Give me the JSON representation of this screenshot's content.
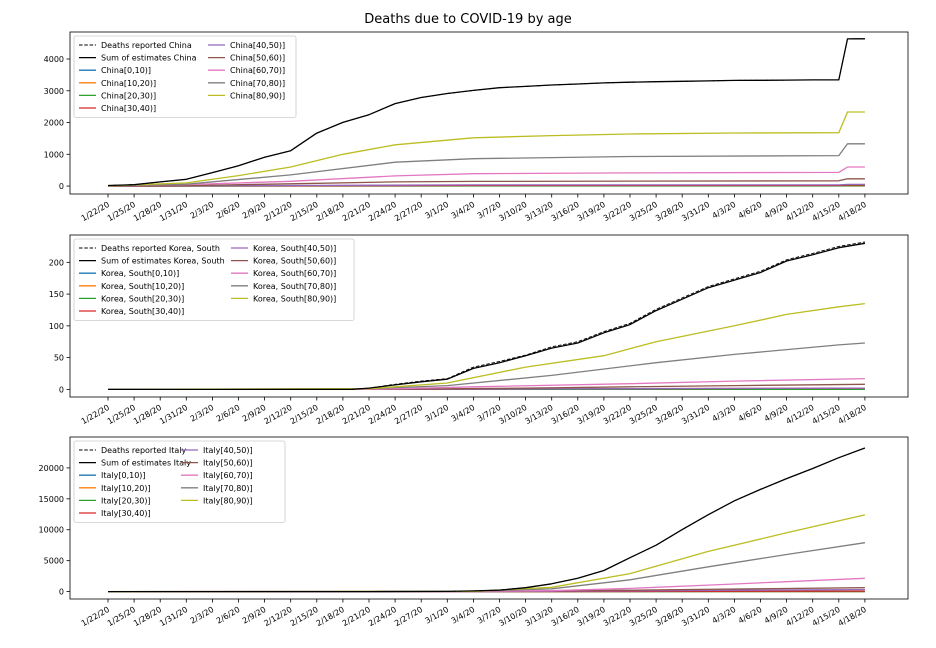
{
  "figure": {
    "title": "Deaths due to COVID-19 by age"
  },
  "x_tick_labels": [
    "1/22/20",
    "1/25/20",
    "1/28/20",
    "1/31/20",
    "2/3/20",
    "2/6/20",
    "2/9/20",
    "2/12/20",
    "2/15/20",
    "2/18/20",
    "2/21/20",
    "2/24/20",
    "2/27/20",
    "3/1/20",
    "3/4/20",
    "3/7/20",
    "3/10/20",
    "3/13/20",
    "3/16/20",
    "3/19/20",
    "3/22/20",
    "3/25/20",
    "3/28/20",
    "3/31/20",
    "4/3/20",
    "4/6/20",
    "4/9/20",
    "4/12/20",
    "4/15/20",
    "4/18/20"
  ],
  "chart_data": [
    {
      "type": "line",
      "country": "China",
      "xlabel": "",
      "ylabel": "",
      "x_range": [
        "1/22/20",
        "4/18/20"
      ],
      "ylim": [
        -250,
        4850
      ],
      "y_ticks": [
        0,
        1000,
        2000,
        3000,
        4000
      ],
      "grid": false,
      "legend_position": "top-left",
      "legend_columns": 2,
      "series": [
        {
          "name": "Deaths reported China",
          "color": "#000000",
          "dash": "dashed",
          "x": [
            "1/22/20",
            "1/25/20",
            "1/28/20",
            "1/31/20",
            "2/3/20",
            "2/6/20",
            "2/9/20",
            "2/12/20",
            "2/15/20",
            "2/18/20",
            "2/21/20",
            "2/24/20",
            "2/27/20",
            "3/1/20",
            "3/4/20",
            "3/7/20",
            "3/10/20",
            "3/13/20",
            "3/16/20",
            "3/19/20",
            "3/22/20",
            "3/25/20",
            "3/28/20",
            "3/31/20",
            "4/3/20",
            "4/6/20",
            "4/9/20",
            "4/12/20",
            "4/15/20",
            "4/16/20",
            "4/17/20",
            "4/18/20"
          ],
          "y": [
            17,
            42,
            132,
            213,
            425,
            637,
            908,
            1113,
            1666,
            2004,
            2247,
            2595,
            2788,
            2914,
            3012,
            3097,
            3136,
            3180,
            3213,
            3248,
            3270,
            3285,
            3299,
            3309,
            3326,
            3331,
            3336,
            3341,
            3342,
            4632,
            4636,
            4636
          ]
        },
        {
          "name": "Sum of estimates China",
          "color": "#000000",
          "dash": "solid",
          "x": [
            "1/22/20",
            "1/25/20",
            "1/28/20",
            "1/31/20",
            "2/3/20",
            "2/6/20",
            "2/9/20",
            "2/12/20",
            "2/15/20",
            "2/18/20",
            "2/21/20",
            "2/24/20",
            "2/27/20",
            "3/1/20",
            "3/4/20",
            "3/7/20",
            "3/10/20",
            "3/13/20",
            "3/16/20",
            "3/19/20",
            "3/22/20",
            "3/25/20",
            "3/28/20",
            "3/31/20",
            "4/3/20",
            "4/6/20",
            "4/9/20",
            "4/12/20",
            "4/15/20",
            "4/16/20",
            "4/17/20",
            "4/18/20"
          ],
          "y": [
            17,
            42,
            132,
            213,
            425,
            637,
            908,
            1113,
            1666,
            2004,
            2247,
            2595,
            2788,
            2914,
            3012,
            3097,
            3136,
            3180,
            3213,
            3248,
            3270,
            3285,
            3299,
            3309,
            3326,
            3331,
            3336,
            3341,
            3342,
            4632,
            4636,
            4636
          ]
        },
        {
          "name": "China[0,10)]",
          "color": "#1f77b4",
          "dash": "solid",
          "x": [
            "1/22/20",
            "2/12/20",
            "3/4/20",
            "4/15/20",
            "4/16/20",
            "4/18/20"
          ],
          "y": [
            0,
            1,
            2,
            2,
            3,
            3
          ]
        },
        {
          "name": "China[10,20)]",
          "color": "#ff7f0e",
          "dash": "solid",
          "x": [
            "1/22/20",
            "2/12/20",
            "3/4/20",
            "4/15/20",
            "4/16/20",
            "4/18/20"
          ],
          "y": [
            0,
            2,
            4,
            4,
            6,
            6
          ]
        },
        {
          "name": "China[20,30)]",
          "color": "#2ca02c",
          "dash": "solid",
          "x": [
            "1/22/20",
            "2/12/20",
            "3/4/20",
            "4/15/20",
            "4/16/20",
            "4/18/20"
          ],
          "y": [
            0,
            5,
            10,
            11,
            15,
            15
          ]
        },
        {
          "name": "China[30,40)]",
          "color": "#d62728",
          "dash": "solid",
          "x": [
            "1/22/20",
            "2/12/20",
            "3/4/20",
            "4/15/20",
            "4/16/20",
            "4/18/20"
          ],
          "y": [
            0,
            11,
            22,
            23,
            32,
            32
          ]
        },
        {
          "name": "China[40,50)]",
          "color": "#9467bd",
          "dash": "solid",
          "x": [
            "1/22/20",
            "2/12/20",
            "3/4/20",
            "4/15/20",
            "4/16/20",
            "4/18/20"
          ],
          "y": [
            0,
            18,
            36,
            38,
            53,
            53
          ]
        },
        {
          "name": "China[50,60)]",
          "color": "#8c564b",
          "dash": "solid",
          "x": [
            "1/22/20",
            "1/31/20",
            "2/12/20",
            "2/24/20",
            "3/4/20",
            "4/15/20",
            "4/16/20",
            "4/18/20"
          ],
          "y": [
            1,
            14,
            72,
            130,
            147,
            165,
            228,
            228
          ]
        },
        {
          "name": "China[60,70)]",
          "color": "#e377c2",
          "dash": "solid",
          "x": [
            "1/22/20",
            "1/31/20",
            "2/12/20",
            "2/24/20",
            "3/4/20",
            "3/22/20",
            "4/15/20",
            "4/16/20",
            "4/18/20"
          ],
          "y": [
            2,
            45,
            150,
            320,
            390,
            415,
            430,
            600,
            600
          ]
        },
        {
          "name": "China[70,80)]",
          "color": "#7f7f7f",
          "dash": "solid",
          "x": [
            "1/22/20",
            "1/31/20",
            "2/12/20",
            "2/24/20",
            "3/4/20",
            "3/22/20",
            "4/15/20",
            "4/16/20",
            "4/18/20"
          ],
          "y": [
            3,
            60,
            350,
            750,
            860,
            930,
            960,
            1330,
            1330
          ]
        },
        {
          "name": "China[80,90)]",
          "color": "#bcbd22",
          "dash": "solid",
          "x": [
            "1/22/20",
            "1/31/20",
            "2/6/20",
            "2/12/20",
            "2/18/20",
            "2/24/20",
            "3/4/20",
            "3/13/20",
            "3/22/20",
            "4/3/20",
            "4/15/20",
            "4/16/20",
            "4/18/20"
          ],
          "y": [
            5,
            100,
            330,
            600,
            1000,
            1300,
            1520,
            1590,
            1640,
            1670,
            1680,
            2330,
            2330
          ]
        }
      ]
    },
    {
      "type": "line",
      "country": "Korea, South",
      "xlabel": "",
      "ylabel": "",
      "x_range": [
        "1/22/20",
        "4/18/20"
      ],
      "ylim": [
        -12,
        243
      ],
      "y_ticks": [
        0,
        50,
        100,
        150,
        200
      ],
      "grid": false,
      "legend_position": "top-left",
      "legend_columns": 2,
      "series": [
        {
          "name": "Deaths reported Korea, South",
          "color": "#000000",
          "dash": "dashed",
          "x": [
            "1/22/20",
            "2/19/20",
            "2/21/20",
            "2/24/20",
            "2/27/20",
            "3/1/20",
            "3/4/20",
            "3/7/20",
            "3/10/20",
            "3/13/20",
            "3/16/20",
            "3/19/20",
            "3/22/20",
            "3/25/20",
            "3/28/20",
            "3/31/20",
            "4/3/20",
            "4/6/20",
            "4/9/20",
            "4/12/20",
            "4/15/20",
            "4/18/20"
          ],
          "y": [
            0,
            0,
            2,
            8,
            13,
            17,
            35,
            44,
            54,
            67,
            75,
            91,
            104,
            126,
            144,
            162,
            174,
            186,
            204,
            214,
            225,
            232
          ]
        },
        {
          "name": "Sum of estimates Korea, South",
          "color": "#000000",
          "dash": "solid",
          "x": [
            "1/22/20",
            "2/19/20",
            "2/21/20",
            "2/24/20",
            "2/27/20",
            "3/1/20",
            "3/4/20",
            "3/7/20",
            "3/10/20",
            "3/13/20",
            "3/16/20",
            "3/19/20",
            "3/22/20",
            "3/25/20",
            "3/28/20",
            "3/31/20",
            "4/3/20",
            "4/6/20",
            "4/9/20",
            "4/12/20",
            "4/15/20",
            "4/18/20"
          ],
          "y": [
            0,
            0,
            2,
            7,
            12,
            16,
            33,
            42,
            53,
            65,
            73,
            89,
            102,
            124,
            142,
            160,
            172,
            184,
            202,
            212,
            223,
            230
          ]
        },
        {
          "name": "Korea, South[0,10)]",
          "color": "#1f77b4",
          "dash": "solid",
          "x": [
            "1/22/20",
            "4/18/20"
          ],
          "y": [
            0,
            0
          ]
        },
        {
          "name": "Korea, South[10,20)]",
          "color": "#ff7f0e",
          "dash": "solid",
          "x": [
            "1/22/20",
            "4/18/20"
          ],
          "y": [
            0,
            0
          ]
        },
        {
          "name": "Korea, South[20,30)]",
          "color": "#2ca02c",
          "dash": "solid",
          "x": [
            "1/22/20",
            "4/18/20"
          ],
          "y": [
            0,
            0
          ]
        },
        {
          "name": "Korea, South[30,40)]",
          "color": "#d62728",
          "dash": "solid",
          "x": [
            "1/22/20",
            "2/21/20",
            "3/22/20",
            "4/18/20"
          ],
          "y": [
            0,
            0,
            1,
            2
          ]
        },
        {
          "name": "Korea, South[40,50)]",
          "color": "#9467bd",
          "dash": "solid",
          "x": [
            "1/22/20",
            "2/21/20",
            "3/22/20",
            "4/18/20"
          ],
          "y": [
            0,
            0,
            1,
            2
          ]
        },
        {
          "name": "Korea, South[50,60)]",
          "color": "#8c564b",
          "dash": "solid",
          "x": [
            "1/22/20",
            "2/21/20",
            "3/10/20",
            "3/22/20",
            "4/3/20",
            "4/18/20"
          ],
          "y": [
            0,
            0,
            2,
            4,
            6,
            8
          ]
        },
        {
          "name": "Korea, South[60,70)]",
          "color": "#e377c2",
          "dash": "solid",
          "x": [
            "1/22/20",
            "2/21/20",
            "3/4/20",
            "3/22/20",
            "4/3/20",
            "4/18/20"
          ],
          "y": [
            0,
            0,
            4,
            9,
            13,
            17
          ]
        },
        {
          "name": "Korea, South[70,80)]",
          "color": "#7f7f7f",
          "dash": "solid",
          "x": [
            "1/22/20",
            "2/21/20",
            "3/1/20",
            "3/13/20",
            "3/25/20",
            "4/3/20",
            "4/15/20",
            "4/18/20"
          ],
          "y": [
            0,
            1,
            6,
            22,
            42,
            55,
            70,
            73
          ]
        },
        {
          "name": "Korea, South[80,90)]",
          "color": "#bcbd22",
          "dash": "solid",
          "x": [
            "1/22/20",
            "2/21/20",
            "3/1/20",
            "3/10/20",
            "3/19/20",
            "3/25/20",
            "4/3/20",
            "4/9/20",
            "4/15/20",
            "4/18/20"
          ],
          "y": [
            0,
            1,
            10,
            35,
            53,
            75,
            100,
            118,
            130,
            135
          ]
        }
      ]
    },
    {
      "type": "line",
      "country": "Italy",
      "xlabel": "",
      "ylabel": "",
      "x_range": [
        "1/22/20",
        "4/18/20"
      ],
      "ylim": [
        -1200,
        25000
      ],
      "y_ticks": [
        0,
        5000,
        10000,
        15000,
        20000
      ],
      "grid": false,
      "legend_position": "top-left",
      "legend_columns": 2,
      "series": [
        {
          "name": "Deaths reported Italy",
          "color": "#000000",
          "dash": "dashed",
          "x": [
            "1/22/20",
            "2/21/20",
            "3/1/20",
            "3/4/20",
            "3/7/20",
            "3/10/20",
            "3/13/20",
            "3/16/20",
            "3/19/20",
            "3/22/20",
            "3/25/20",
            "3/28/20",
            "3/31/20",
            "4/3/20",
            "4/6/20",
            "4/9/20",
            "4/12/20",
            "4/15/20",
            "4/18/20"
          ],
          "y": [
            0,
            1,
            34,
            107,
            233,
            631,
            1266,
            2158,
            3405,
            5476,
            7503,
            10023,
            12428,
            14681,
            16523,
            18279,
            19899,
            21645,
            23227
          ]
        },
        {
          "name": "Sum of estimates Italy",
          "color": "#000000",
          "dash": "solid",
          "x": [
            "1/22/20",
            "2/21/20",
            "3/1/20",
            "3/4/20",
            "3/7/20",
            "3/10/20",
            "3/13/20",
            "3/16/20",
            "3/19/20",
            "3/22/20",
            "3/25/20",
            "3/28/20",
            "3/31/20",
            "4/3/20",
            "4/6/20",
            "4/9/20",
            "4/12/20",
            "4/15/20",
            "4/18/20"
          ],
          "y": [
            0,
            1,
            34,
            107,
            233,
            631,
            1266,
            2158,
            3405,
            5476,
            7503,
            10023,
            12428,
            14681,
            16523,
            18279,
            19899,
            21645,
            23227
          ]
        },
        {
          "name": "Italy[0,10)]",
          "color": "#1f77b4",
          "dash": "solid",
          "x": [
            "1/22/20",
            "4/18/20"
          ],
          "y": [
            0,
            0
          ]
        },
        {
          "name": "Italy[10,20)]",
          "color": "#ff7f0e",
          "dash": "solid",
          "x": [
            "1/22/20",
            "4/18/20"
          ],
          "y": [
            0,
            0
          ]
        },
        {
          "name": "Italy[20,30)]",
          "color": "#2ca02c",
          "dash": "solid",
          "x": [
            "1/22/20",
            "3/10/20",
            "4/18/20"
          ],
          "y": [
            0,
            0,
            20
          ]
        },
        {
          "name": "Italy[30,40)]",
          "color": "#d62728",
          "dash": "solid",
          "x": [
            "1/22/20",
            "3/10/20",
            "3/25/20",
            "4/18/20"
          ],
          "y": [
            0,
            3,
            30,
            80
          ]
        },
        {
          "name": "Italy[40,50)]",
          "color": "#9467bd",
          "dash": "solid",
          "x": [
            "1/22/20",
            "3/4/20",
            "3/22/20",
            "4/3/20",
            "4/18/20"
          ],
          "y": [
            0,
            2,
            110,
            220,
            320
          ]
        },
        {
          "name": "Italy[50,60)]",
          "color": "#8c564b",
          "dash": "solid",
          "x": [
            "1/22/20",
            "3/4/20",
            "3/22/20",
            "4/3/20",
            "4/18/20"
          ],
          "y": [
            0,
            5,
            220,
            420,
            620
          ]
        },
        {
          "name": "Italy[60,70)]",
          "color": "#e377c2",
          "dash": "solid",
          "x": [
            "1/22/20",
            "3/4/20",
            "3/13/20",
            "3/22/20",
            "3/31/20",
            "4/9/20",
            "4/18/20"
          ],
          "y": [
            0,
            15,
            150,
            520,
            1050,
            1600,
            2150
          ]
        },
        {
          "name": "Italy[70,80)]",
          "color": "#7f7f7f",
          "dash": "solid",
          "x": [
            "1/22/20",
            "3/4/20",
            "3/13/20",
            "3/22/20",
            "3/31/20",
            "4/9/20",
            "4/18/20"
          ],
          "y": [
            0,
            35,
            450,
            1900,
            4000,
            6000,
            7900
          ]
        },
        {
          "name": "Italy[80,90)]",
          "color": "#bcbd22",
          "dash": "solid",
          "x": [
            "1/22/20",
            "3/4/20",
            "3/13/20",
            "3/22/20",
            "3/31/20",
            "4/9/20",
            "4/18/20"
          ],
          "y": [
            0,
            45,
            700,
            2900,
            6500,
            9500,
            12400
          ]
        }
      ]
    }
  ]
}
